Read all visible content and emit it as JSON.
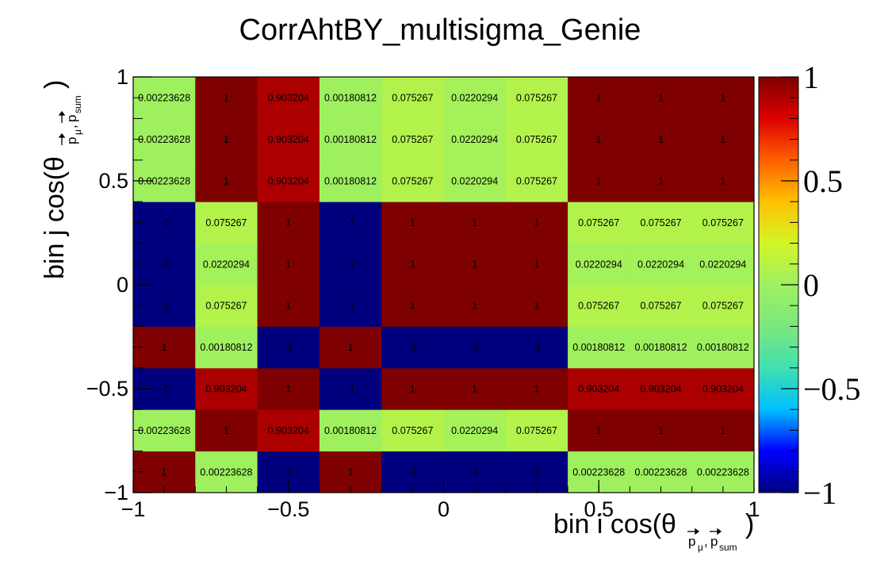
{
  "chart_data": {
    "type": "heatmap",
    "title": "CorrAhtBY_multisigma_Genie",
    "xlabel": {
      "main": "bin i cos(θ",
      "sub_a": "p",
      "sub_mu": "μ",
      "sub_sep": ",",
      "sub_b": "p",
      "sub_sum": "sum",
      "close": ")"
    },
    "ylabel": {
      "main": "bin j cos(θ",
      "sub_a": "p",
      "sub_mu": "μ",
      "sub_sep": ",",
      "sub_b": "p",
      "sub_sum": "sum",
      "close": ")"
    },
    "xlim": [
      -1,
      1
    ],
    "ylim": [
      -1,
      1
    ],
    "zlim": [
      -1,
      1
    ],
    "x_ticks": [
      "−1",
      "−0.5",
      "0",
      "0.5",
      "1"
    ],
    "y_ticks": [
      "−1",
      "−0.5",
      "0",
      "0.5",
      "1"
    ],
    "z_ticks": [
      "−1",
      "−0.5",
      "0",
      "0.5",
      "1"
    ],
    "x_tick_values": [
      -1,
      -0.5,
      0,
      0.5,
      1
    ],
    "y_tick_values": [
      -1,
      -0.5,
      0,
      0.5,
      1
    ],
    "z_tick_values": [
      -1,
      -0.5,
      0,
      0.5,
      1
    ],
    "x_edges": [
      -1,
      -0.8,
      -0.6,
      -0.4,
      -0.2,
      0,
      0.2,
      0.4,
      0.6,
      0.8,
      1
    ],
    "y_edges": [
      -1,
      -0.8,
      -0.6,
      -0.4,
      -0.2,
      0,
      0.2,
      0.4,
      0.6,
      0.8,
      1
    ],
    "cell_values": [
      [
        1,
        0.00223628,
        -1,
        1,
        -1,
        -1,
        -1,
        0.00223628,
        0.00223628,
        0.00223628
      ],
      [
        0.00223628,
        1,
        0.903204,
        0.00180812,
        0.075267,
        0.0220294,
        0.075267,
        1,
        1,
        1
      ],
      [
        -1,
        0.903204,
        1,
        -1,
        1,
        1,
        1,
        0.903204,
        0.903204,
        0.903204
      ],
      [
        1,
        0.00180812,
        -1,
        1,
        -1,
        -1,
        -1,
        0.00180812,
        0.00180812,
        0.00180812
      ],
      [
        -1,
        0.075267,
        1,
        -1,
        1,
        1,
        1,
        0.075267,
        0.075267,
        0.075267
      ],
      [
        -1,
        0.0220294,
        1,
        -1,
        1,
        1,
        1,
        0.0220294,
        0.0220294,
        0.0220294
      ],
      [
        -1,
        0.075267,
        1,
        -1,
        1,
        1,
        1,
        0.075267,
        0.075267,
        0.075267
      ],
      [
        0.00223628,
        1,
        0.903204,
        0.00180812,
        0.075267,
        0.0220294,
        0.075267,
        1,
        1,
        1
      ],
      [
        0.00223628,
        1,
        0.903204,
        0.00180812,
        0.075267,
        0.0220294,
        0.075267,
        1,
        1,
        1
      ],
      [
        0.00223628,
        1,
        0.903204,
        0.00180812,
        0.075267,
        0.0220294,
        0.075267,
        1,
        1,
        1
      ]
    ],
    "cell_labels": [
      [
        "1",
        "0.00223628",
        "-1",
        "1",
        "-1",
        "-1",
        "-1",
        "0.00223628",
        "0.00223628",
        "0.00223628"
      ],
      [
        "0.00223628",
        "1",
        "0.903204",
        "0.00180812",
        "0.075267",
        "0.0220294",
        "0.075267",
        "1",
        "1",
        "1"
      ],
      [
        "-1",
        "0.903204",
        "1",
        "-1",
        "1",
        "1",
        "1",
        "0.903204",
        "0.903204",
        "0.903204"
      ],
      [
        "1",
        "0.00180812",
        "-1",
        "1",
        "-1",
        "-1",
        "-1",
        "0.00180812",
        "0.00180812",
        "0.00180812"
      ],
      [
        "-1",
        "0.075267",
        "1",
        "-1",
        "1",
        "1",
        "1",
        "0.075267",
        "0.075267",
        "0.075267"
      ],
      [
        "-1",
        "0.0220294",
        "1",
        "-1",
        "1",
        "1",
        "1",
        "0.0220294",
        "0.0220294",
        "0.0220294"
      ],
      [
        "-1",
        "0.075267",
        "1",
        "-1",
        "1",
        "1",
        "1",
        "0.075267",
        "0.075267",
        "0.075267"
      ],
      [
        "0.00223628",
        "1",
        "0.903204",
        "0.00180812",
        "0.075267",
        "0.0220294",
        "0.075267",
        "1",
        "1",
        "1"
      ],
      [
        "0.00223628",
        "1",
        "0.903204",
        "0.00180812",
        "0.075267",
        "0.0220294",
        "0.075267",
        "1",
        "1",
        "1"
      ],
      [
        "0.00223628",
        "1",
        "0.903204",
        "0.00180812",
        "0.075267",
        "0.0220294",
        "0.075267",
        "1",
        "1",
        "1"
      ]
    ],
    "colormap": [
      "#00007f",
      "#0000ff",
      "#00bfff",
      "#40e0b0",
      "#7ce77c",
      "#9ef060",
      "#d2f528",
      "#ffc000",
      "#ff6000",
      "#dc0000",
      "#7f0000"
    ],
    "grid": false,
    "colorbar": "right"
  }
}
